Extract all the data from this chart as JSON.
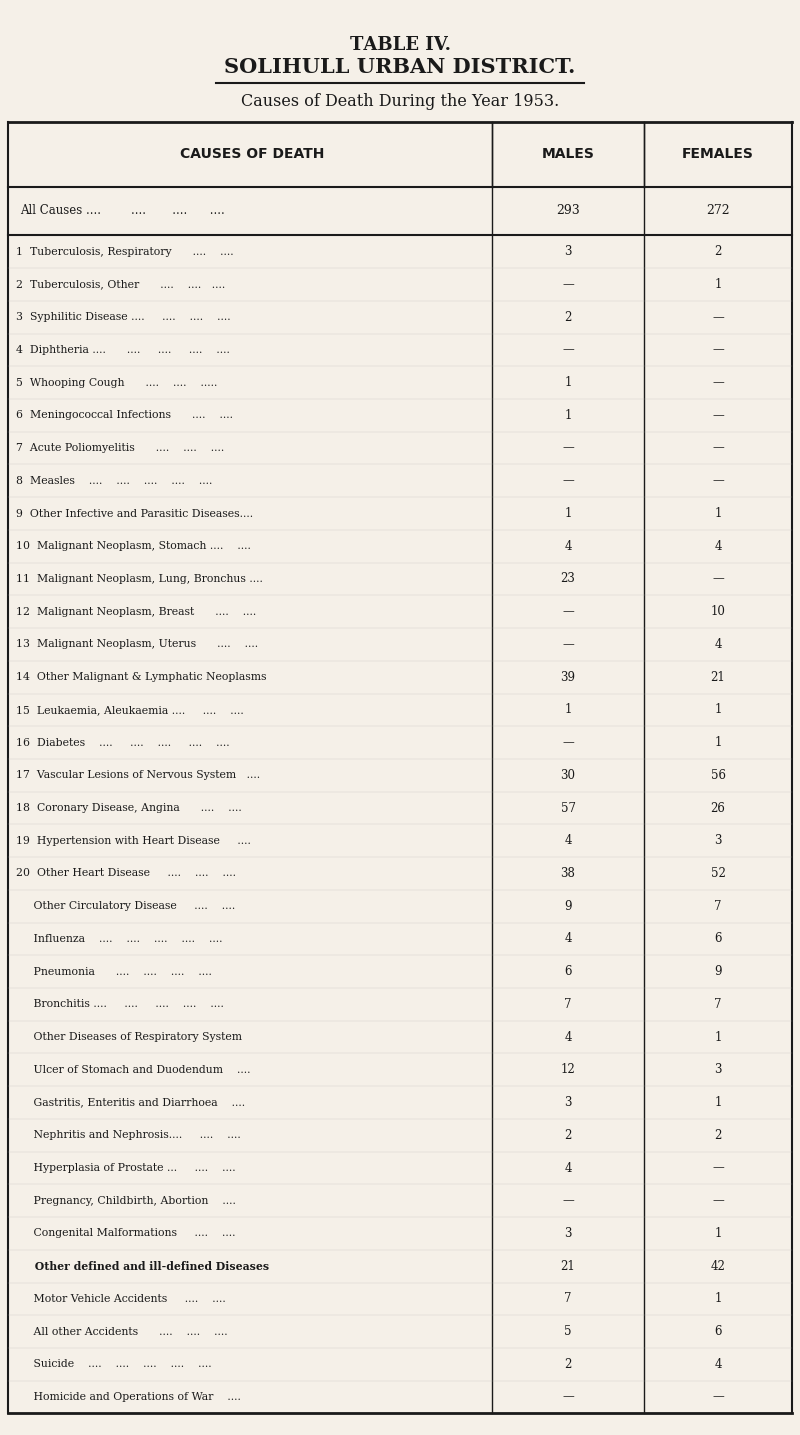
{
  "title1": "T",
  "title1_small": "ABLE",
  "title1_rest": " IV.",
  "title2": "SOLIHULL URBAN DISTRICT.",
  "subtitle": "Causes of Death During the Year 1953.",
  "col_headers": [
    "CAUSES OF DEATH",
    "MALES",
    "FEMALES"
  ],
  "bg_color": "#f5f0e8",
  "rows": [
    {
      "cause": "All Causes ....        ....       ....      ....",
      "males": "293",
      "females": "272",
      "bold": true,
      "separator_after": true
    },
    {
      "cause": "1  Tuberculosis, Respiratory      ....    ....",
      "males": "3",
      "females": "2",
      "bold": false
    },
    {
      "cause": "2  Tuberculosis, Other      ....    ....   ....",
      "males": "—",
      "females": "1",
      "bold": false
    },
    {
      "cause": "3  Syphilitic Disease ....     ....    ....    ....",
      "males": "2",
      "females": "—",
      "bold": false
    },
    {
      "cause": "4  Diphtheria ....      ....     ....     ....    ....",
      "males": "—",
      "females": "—",
      "bold": false
    },
    {
      "cause": "5  Whooping Cough      ....    ....    .....",
      "males": "1",
      "females": "—",
      "bold": false
    },
    {
      "cause": "6  Meningococcal Infections      ....    ....",
      "males": "1",
      "females": "—",
      "bold": false
    },
    {
      "cause": "7  Acute Poliomyelitis      ....    ....    ....",
      "males": "—",
      "females": "—",
      "bold": false
    },
    {
      "cause": "8  Measles    ....    ....    ....    ....    ....",
      "males": "—",
      "females": "—",
      "bold": false
    },
    {
      "cause": "9  Other Infective and Parasitic Diseases....",
      "males": "1",
      "females": "1",
      "bold": false
    },
    {
      "cause": "10  Malignant Neoplasm, Stomach ....    ....",
      "males": "4",
      "females": "4",
      "bold": false
    },
    {
      "cause": "11  Malignant Neoplasm, Lung, Bronchus ....",
      "males": "23",
      "females": "—",
      "bold": false
    },
    {
      "cause": "12  Malignant Neoplasm, Breast      ....    ....",
      "males": "—",
      "females": "10",
      "bold": false
    },
    {
      "cause": "13  Malignant Neoplasm, Uterus      ....    ....",
      "males": "—",
      "females": "4",
      "bold": false
    },
    {
      "cause": "14  Other Malignant & Lymphatic Neoplasms",
      "males": "39",
      "females": "21",
      "bold": false
    },
    {
      "cause": "15  Leukaemia, Aleukaemia ....     ....    ....",
      "males": "1",
      "females": "1",
      "bold": false
    },
    {
      "cause": "16  Diabetes    ....     ....    ....     ....    ....",
      "males": "—",
      "females": "1",
      "bold": false
    },
    {
      "cause": "17  Vascular Lesions of Nervous System   ....",
      "males": "30",
      "females": "56",
      "bold": false
    },
    {
      "cause": "18  Coronary Disease, Angina      ....    ....",
      "males": "57",
      "females": "26",
      "bold": false
    },
    {
      "cause": "19  Hypertension with Heart Disease     ....",
      "males": "4",
      "females": "3",
      "bold": false
    },
    {
      "cause": "20  Other Heart Disease     ....    ....    ....",
      "males": "38",
      "females": "52",
      "bold": false
    },
    {
      "cause": "     Other Circulatory Disease     ....    ....",
      "males": "9",
      "females": "7",
      "bold": false
    },
    {
      "cause": "     Influenza    ....    ....    ....    ....    ....",
      "males": "4",
      "females": "6",
      "bold": false
    },
    {
      "cause": "     Pneumonia      ....    ....    ....    ....",
      "males": "6",
      "females": "9",
      "bold": false
    },
    {
      "cause": "     Bronchitis ....     ....     ....    ....    ....",
      "males": "7",
      "females": "7",
      "bold": false
    },
    {
      "cause": "     Other Diseases of Respiratory System",
      "males": "4",
      "females": "1",
      "bold": false
    },
    {
      "cause": "     Ulcer of Stomach and Duodendum    ....",
      "males": "12",
      "females": "3",
      "bold": false
    },
    {
      "cause": "     Gastritis, Enteritis and Diarrhoea    ....",
      "males": "3",
      "females": "1",
      "bold": false
    },
    {
      "cause": "     Nephritis and Nephrosis....     ....    ....",
      "males": "2",
      "females": "2",
      "bold": false
    },
    {
      "cause": "     Hyperplasia of Prostate ...     ....    ....",
      "males": "4",
      "females": "—",
      "bold": false
    },
    {
      "cause": "     Pregnancy, Childbirth, Abortion    ....",
      "males": "—",
      "females": "—",
      "bold": false
    },
    {
      "cause": "     Congenital Malformations     ....    ....",
      "males": "3",
      "females": "1",
      "bold": false
    },
    {
      "cause": "     Other defined and ill-defined Diseases",
      "males": "21",
      "females": "42",
      "bold": true
    },
    {
      "cause": "     Motor Vehicle Accidents     ....    ....",
      "males": "7",
      "females": "1",
      "bold": false
    },
    {
      "cause": "     All other Accidents      ....    ....    ....",
      "males": "5",
      "females": "6",
      "bold": false
    },
    {
      "cause": "     Suicide    ....    ....    ....    ....    ....",
      "males": "2",
      "females": "4",
      "bold": false
    },
    {
      "cause": "     Homicide and Operations of War    ....",
      "males": "—",
      "females": "—",
      "bold": false
    }
  ]
}
